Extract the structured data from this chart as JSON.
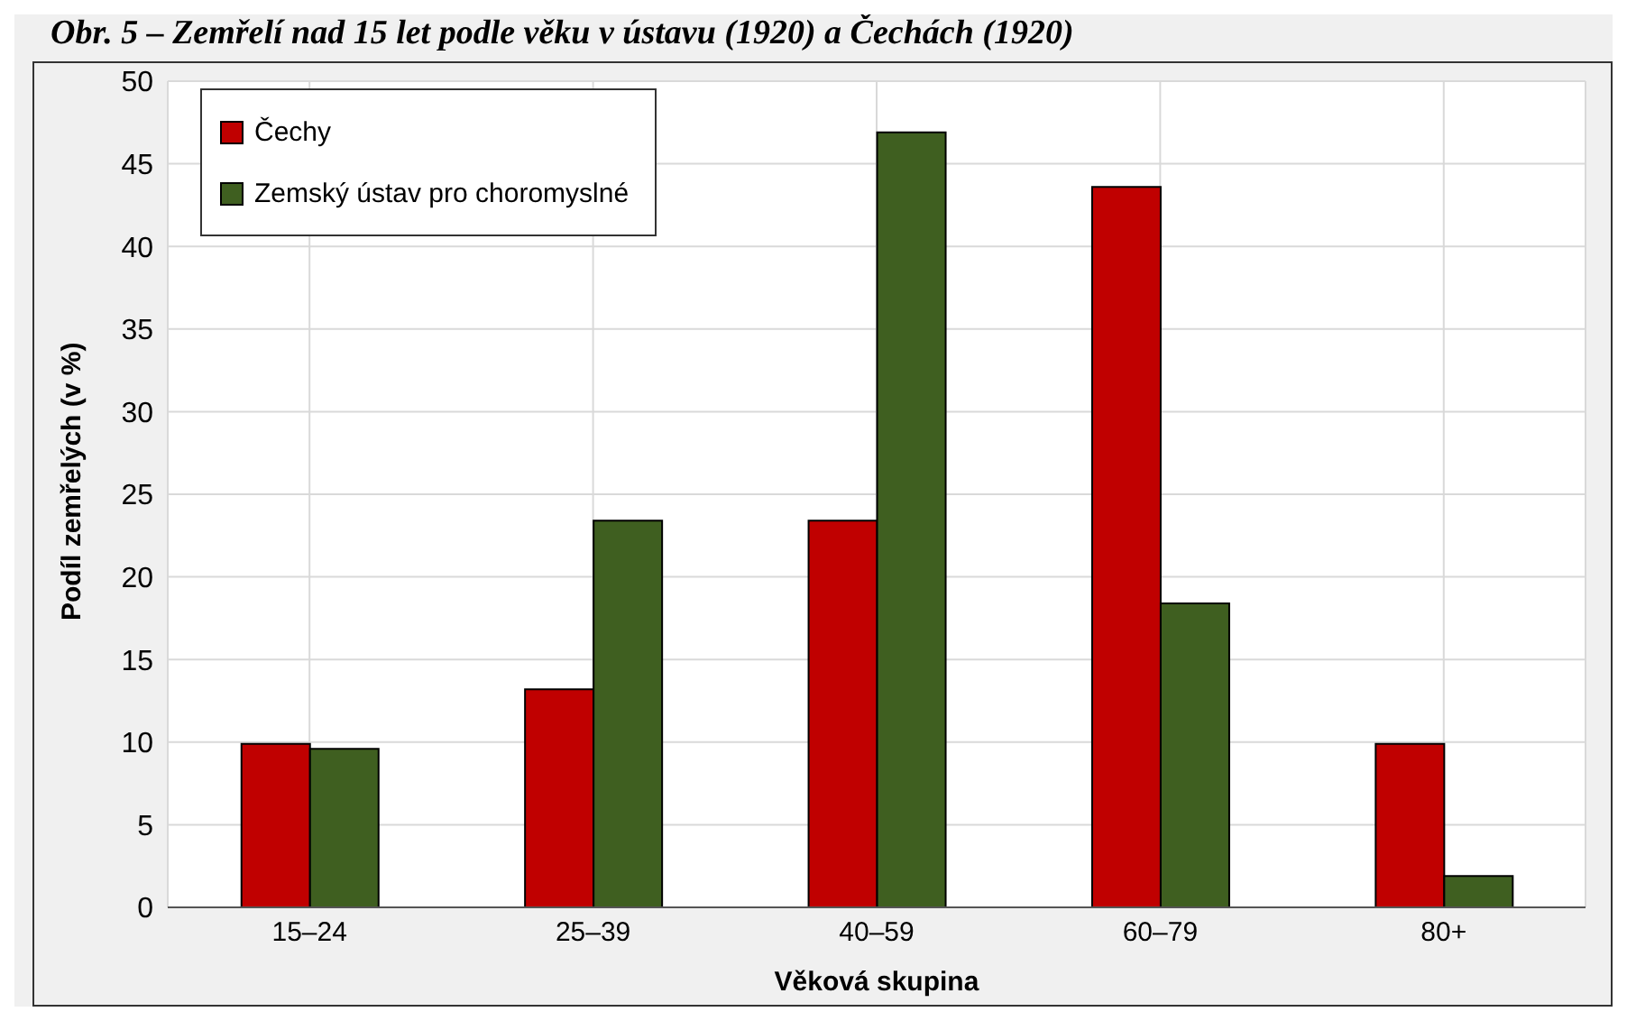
{
  "chart_data": {
    "type": "bar",
    "title": "Obr. 5 – Zemřelí nad 15 let podle věku v ústavu (1920) a Čechách (1920)",
    "xlabel": "Věková skupina",
    "ylabel": "Podíl zemřelých (v %)",
    "categories": [
      "15–24",
      "25–39",
      "40–59",
      "60–79",
      "80+"
    ],
    "series": [
      {
        "name": "Čechy",
        "color": "#c00000",
        "values": [
          9.9,
          13.2,
          23.4,
          43.6,
          9.9
        ]
      },
      {
        "name": "Zemský ústav pro choromyslné",
        "color": "#3f5f20",
        "values": [
          9.6,
          23.4,
          46.9,
          18.4,
          1.9
        ]
      }
    ],
    "ylim": [
      0,
      50
    ],
    "yticks": [
      0,
      5,
      10,
      15,
      20,
      25,
      30,
      35,
      40,
      45,
      50
    ],
    "grid": true,
    "legend": "top left"
  }
}
